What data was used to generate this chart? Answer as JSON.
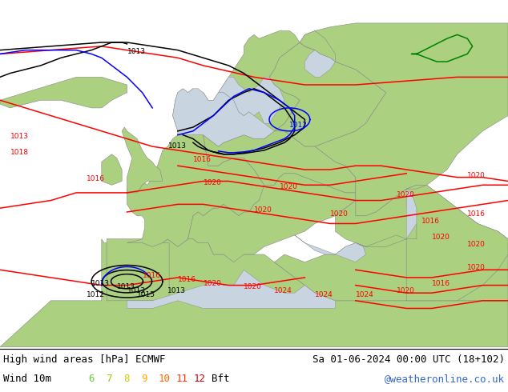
{
  "title_left": "High wind areas [hPa] ECMWF",
  "title_right": "Sa 01-06-2024 00:00 UTC (18+102)",
  "subtitle_left": "Wind 10m",
  "subtitle_right": "@weatheronline.co.uk",
  "bft_colors": [
    "#66cc33",
    "#99cc00",
    "#cccc00",
    "#ffaa00",
    "#ff6600",
    "#ff3300",
    "#cc0000"
  ],
  "bft_numbers": [
    "6",
    "7",
    "8",
    "9",
    "10",
    "11",
    "12"
  ],
  "land_color": "#aad080",
  "sea_color": "#c8d4e0",
  "gray_color": "#b0b0b0",
  "bottom_bg": "#ffffff",
  "text_color": "#000000",
  "figsize": [
    6.34,
    4.9
  ],
  "dpi": 100,
  "xlim": [
    -30,
    70
  ],
  "ylim": [
    30,
    75
  ]
}
